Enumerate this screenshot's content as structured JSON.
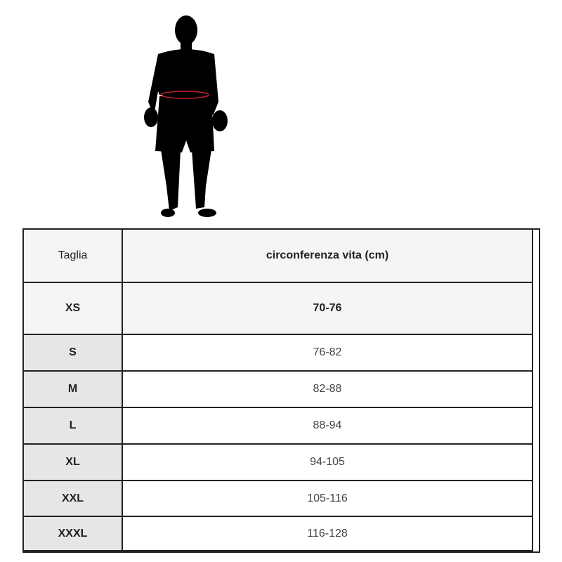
{
  "illustration": {
    "icon": "boxer-silhouette-waist-measure-icon",
    "accent": "#c0202a"
  },
  "table": {
    "headers": [
      "Taglia",
      "circonferenza vita (cm)"
    ],
    "rows": [
      {
        "size": "XS",
        "waist": "70-76"
      },
      {
        "size": "S",
        "waist": "76-82"
      },
      {
        "size": "M",
        "waist": "82-88"
      },
      {
        "size": "L",
        "waist": "88-94"
      },
      {
        "size": "XL",
        "waist": "94-105"
      },
      {
        "size": "XXL",
        "waist": "105-116"
      },
      {
        "size": "XXXL",
        "waist": "116-128"
      }
    ]
  }
}
